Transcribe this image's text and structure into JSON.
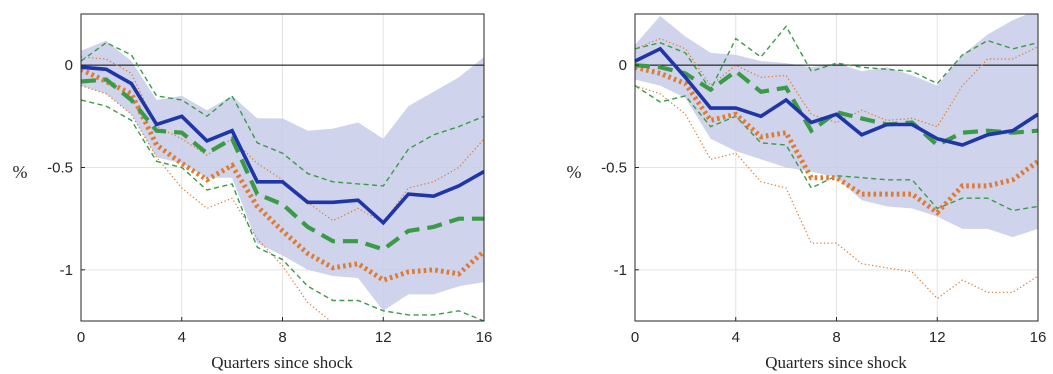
{
  "colors": {
    "band": "#c7cbe8",
    "solid": "#1f35a8",
    "green": "#3b9a48",
    "orange": "#e07a2e",
    "zero": "#000000",
    "grid": "#e3e3e3",
    "axis": "#262626"
  },
  "chart_data": [
    {
      "type": "line",
      "xlabel": "Quarters since shock",
      "ylabel": "%",
      "xlim": [
        0,
        16
      ],
      "ylim": [
        -1.25,
        0.25
      ],
      "xticks": [
        0,
        4,
        8,
        12,
        16
      ],
      "yticks": [
        0,
        -0.5,
        -1
      ],
      "ytick_labels": [
        "0",
        "-0.5",
        "-1"
      ],
      "grid": true,
      "x": [
        0,
        1,
        2,
        3,
        4,
        5,
        6,
        7,
        8,
        9,
        10,
        11,
        12,
        13,
        14,
        15,
        16
      ],
      "band": {
        "upper": [
          0.07,
          0.12,
          0.02,
          -0.17,
          -0.15,
          -0.22,
          -0.15,
          -0.26,
          -0.26,
          -0.32,
          -0.31,
          -0.28,
          -0.36,
          -0.2,
          -0.13,
          -0.06,
          0.04
        ],
        "lower": [
          -0.1,
          -0.14,
          -0.24,
          -0.45,
          -0.48,
          -0.55,
          -0.55,
          -0.87,
          -0.93,
          -1.0,
          -1.03,
          -1.04,
          -1.2,
          -1.12,
          -1.12,
          -1.08,
          -1.06
        ]
      },
      "series": [
        {
          "style": "solid",
          "color": "#1f35a8",
          "values": [
            -0.01,
            -0.02,
            -0.09,
            -0.29,
            -0.25,
            -0.37,
            -0.32,
            -0.57,
            -0.57,
            -0.67,
            -0.67,
            -0.66,
            -0.77,
            -0.63,
            -0.64,
            -0.59,
            -0.52
          ]
        },
        {
          "style": "thick-dash",
          "color": "#3b9a48",
          "values": [
            -0.08,
            -0.07,
            -0.17,
            -0.32,
            -0.33,
            -0.43,
            -0.36,
            -0.63,
            -0.68,
            -0.79,
            -0.86,
            -0.86,
            -0.9,
            -0.81,
            -0.79,
            -0.75,
            -0.75
          ]
        },
        {
          "style": "thick-dot",
          "color": "#e07a2e",
          "values": [
            -0.02,
            -0.08,
            -0.14,
            -0.39,
            -0.48,
            -0.56,
            -0.49,
            -0.69,
            -0.81,
            -0.92,
            -0.99,
            -0.97,
            -1.05,
            -1.01,
            -1.0,
            -1.02,
            -0.91
          ]
        },
        {
          "style": "thin-dash",
          "color": "#3b9a48",
          "values": [
            0.02,
            0.11,
            0.05,
            -0.15,
            -0.17,
            -0.25,
            -0.15,
            -0.38,
            -0.43,
            -0.53,
            -0.57,
            -0.58,
            -0.59,
            -0.41,
            -0.34,
            -0.3,
            -0.25
          ]
        },
        {
          "style": "thin-dash",
          "color": "#3b9a48",
          "values": [
            -0.17,
            -0.2,
            -0.27,
            -0.47,
            -0.5,
            -0.61,
            -0.58,
            -0.89,
            -0.95,
            -1.08,
            -1.15,
            -1.15,
            -1.2,
            -1.22,
            -1.22,
            -1.2,
            -1.25
          ]
        },
        {
          "style": "thin-dot",
          "color": "#e07a2e",
          "values": [
            0.04,
            0.03,
            -0.04,
            -0.3,
            -0.36,
            -0.44,
            -0.36,
            -0.48,
            -0.56,
            -0.67,
            -0.76,
            -0.7,
            -0.77,
            -0.6,
            -0.57,
            -0.5,
            -0.36
          ]
        },
        {
          "style": "thin-dot",
          "color": "#e07a2e",
          "values": [
            -0.1,
            -0.14,
            -0.24,
            -0.45,
            -0.6,
            -0.7,
            -0.65,
            -0.85,
            -0.98,
            -1.16,
            -1.26,
            -1.25,
            -1.3,
            -1.32,
            -1.35,
            -1.33,
            -1.3
          ]
        }
      ]
    },
    {
      "type": "line",
      "xlabel": "Quarters since shock",
      "ylabel": "%",
      "xlim": [
        0,
        16
      ],
      "ylim": [
        -1.25,
        0.25
      ],
      "xticks": [
        0,
        4,
        8,
        12,
        16
      ],
      "yticks": [
        0,
        -0.5,
        -1
      ],
      "ytick_labels": [
        "0",
        "-0.5",
        "-1"
      ],
      "grid": true,
      "x": [
        0,
        1,
        2,
        3,
        4,
        5,
        6,
        7,
        8,
        9,
        10,
        11,
        12,
        13,
        14,
        15,
        16
      ],
      "band": {
        "upper": [
          0.1,
          0.24,
          0.14,
          0.06,
          0.05,
          0.02,
          0.01,
          -0.01,
          0.01,
          -0.03,
          -0.01,
          -0.05,
          -0.1,
          0.05,
          0.15,
          0.22,
          0.27
        ],
        "lower": [
          -0.07,
          -0.1,
          -0.16,
          -0.36,
          -0.42,
          -0.46,
          -0.5,
          -0.52,
          -0.55,
          -0.66,
          -0.69,
          -0.7,
          -0.74,
          -0.8,
          -0.8,
          -0.84,
          -0.8
        ]
      },
      "series": [
        {
          "style": "solid",
          "color": "#1f35a8",
          "values": [
            0.02,
            0.08,
            -0.06,
            -0.21,
            -0.21,
            -0.25,
            -0.17,
            -0.28,
            -0.24,
            -0.34,
            -0.29,
            -0.29,
            -0.36,
            -0.39,
            -0.34,
            -0.32,
            -0.24
          ]
        },
        {
          "style": "thick-dash",
          "color": "#3b9a48",
          "values": [
            0.0,
            -0.01,
            -0.04,
            -0.12,
            -0.03,
            -0.13,
            -0.11,
            -0.32,
            -0.23,
            -0.26,
            -0.29,
            -0.28,
            -0.39,
            -0.33,
            -0.32,
            -0.33,
            -0.32
          ]
        },
        {
          "style": "thick-dot",
          "color": "#e07a2e",
          "values": [
            -0.01,
            -0.04,
            -0.09,
            -0.27,
            -0.24,
            -0.35,
            -0.33,
            -0.55,
            -0.55,
            -0.63,
            -0.63,
            -0.63,
            -0.72,
            -0.59,
            -0.59,
            -0.56,
            -0.47
          ]
        },
        {
          "style": "thin-dash",
          "color": "#3b9a48",
          "values": [
            0.08,
            0.11,
            0.06,
            -0.12,
            0.13,
            0.04,
            0.19,
            -0.03,
            0.01,
            -0.01,
            -0.02,
            -0.03,
            -0.09,
            0.05,
            0.12,
            0.08,
            0.11
          ]
        },
        {
          "style": "thin-dash",
          "color": "#3b9a48",
          "values": [
            -0.1,
            -0.18,
            -0.15,
            -0.3,
            -0.25,
            -0.38,
            -0.39,
            -0.6,
            -0.54,
            -0.55,
            -0.56,
            -0.56,
            -0.7,
            -0.65,
            -0.65,
            -0.71,
            -0.69
          ]
        },
        {
          "style": "thin-dot",
          "color": "#e07a2e",
          "values": [
            0.08,
            0.13,
            0.08,
            -0.1,
            0.0,
            -0.06,
            -0.05,
            -0.24,
            -0.28,
            -0.22,
            -0.27,
            -0.26,
            -0.3,
            -0.1,
            0.03,
            0.03,
            0.09
          ]
        },
        {
          "style": "thin-dot",
          "color": "#e07a2e",
          "values": [
            -0.1,
            -0.14,
            -0.24,
            -0.46,
            -0.43,
            -0.57,
            -0.6,
            -0.87,
            -0.87,
            -0.97,
            -0.99,
            -1.01,
            -1.14,
            -1.05,
            -1.11,
            -1.11,
            -1.03
          ]
        }
      ]
    }
  ]
}
